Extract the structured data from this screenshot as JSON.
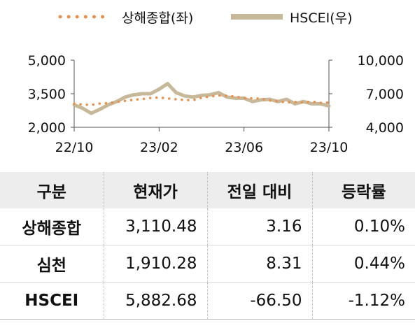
{
  "chart_data": {
    "type": "line",
    "x_ticks": [
      "22/10",
      "23/02",
      "23/06",
      "23/10"
    ],
    "y_left": {
      "ticks": [
        "2,000",
        "3,500",
        "5,000"
      ],
      "range": [
        2000,
        5000
      ]
    },
    "y_right": {
      "ticks": [
        "4,000",
        "7,000",
        "10,000"
      ],
      "range": [
        4000,
        10000
      ]
    },
    "series": [
      {
        "name": "상해종합(좌)",
        "axis": "left",
        "style": "dotted",
        "color": "#e8914d",
        "values": [
          3050,
          3020,
          3000,
          3060,
          3080,
          3130,
          3180,
          3230,
          3260,
          3310,
          3330,
          3290,
          3250,
          3220,
          3210,
          3320,
          3380,
          3420,
          3410,
          3370,
          3310,
          3290,
          3280,
          3200,
          3160,
          3110,
          3130,
          3110,
          3150,
          3090,
          3110
        ]
      },
      {
        "name": "HSCEI(우)",
        "axis": "right",
        "style": "solid",
        "color": "#c8b89a",
        "values": [
          6000,
          5700,
          5250,
          5600,
          6000,
          6300,
          6700,
          6900,
          7000,
          7000,
          7400,
          7900,
          7100,
          6800,
          6700,
          6850,
          6900,
          7100,
          6700,
          6600,
          6600,
          6300,
          6450,
          6500,
          6300,
          6500,
          6100,
          6300,
          6100,
          6100,
          5900
        ]
      }
    ]
  },
  "legend": [
    {
      "label": "상해종합(좌)",
      "icon": "dotted-line-icon",
      "color": "#e8914d"
    },
    {
      "label": "HSCEI(우)",
      "icon": "solid-line-icon",
      "color": "#c8b89a"
    }
  ],
  "table": {
    "headers": [
      "구분",
      "현재가",
      "전일 대비",
      "등락률"
    ],
    "rows": [
      [
        "상해종합",
        "3,110.48",
        "3.16",
        "0.10%"
      ],
      [
        "심천",
        "1,910.28",
        "8.31",
        "0.44%"
      ],
      [
        "HSCEI",
        "5,882.68",
        "-66.50",
        "-1.12%"
      ]
    ]
  }
}
